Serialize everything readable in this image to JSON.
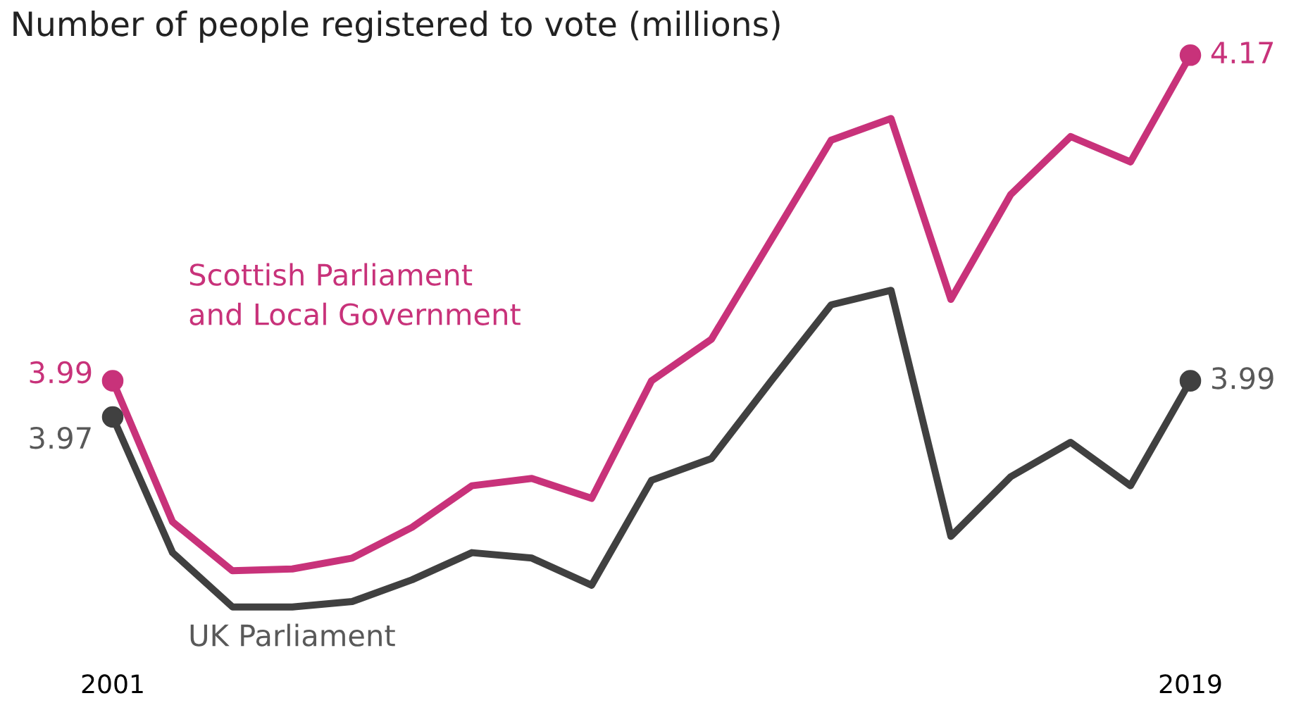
{
  "chart_data": {
    "type": "line",
    "title": "Number of people registered to vote (millions)",
    "x": [
      2001,
      2002,
      2003,
      2004,
      2005,
      2006,
      2007,
      2008,
      2009,
      2010,
      2011,
      2012,
      2013,
      2014,
      2015,
      2016,
      2017,
      2018,
      2019
    ],
    "xlim": [
      2001,
      2019
    ],
    "xticks": [
      2001,
      2019
    ],
    "series": [
      {
        "name": "Scottish Parliament and Local Government",
        "color": "#c8327a",
        "values": [
          3.99,
          3.912,
          3.885,
          3.886,
          3.892,
          3.909,
          3.932,
          3.936,
          3.925,
          3.99,
          4.013,
          4.068,
          4.123,
          4.135,
          4.035,
          4.093,
          4.125,
          4.111,
          4.17
        ],
        "value_labels": [
          "3.99",
          null,
          null,
          null,
          null,
          null,
          null,
          null,
          null,
          null,
          null,
          null,
          null,
          null,
          null,
          null,
          null,
          null,
          "4.17"
        ]
      },
      {
        "name": "UK Parliament",
        "color": "#404040",
        "values": [
          3.97,
          3.895,
          3.865,
          3.865,
          3.868,
          3.88,
          3.895,
          3.892,
          3.877,
          3.935,
          3.947,
          3.99,
          4.032,
          4.04,
          3.904,
          3.937,
          3.956,
          3.932,
          3.99
        ],
        "value_labels": [
          "3.97",
          null,
          null,
          null,
          null,
          null,
          null,
          null,
          null,
          null,
          null,
          null,
          null,
          null,
          null,
          null,
          null,
          null,
          "3.99"
        ]
      }
    ],
    "grid": false,
    "line_style": "solid"
  }
}
